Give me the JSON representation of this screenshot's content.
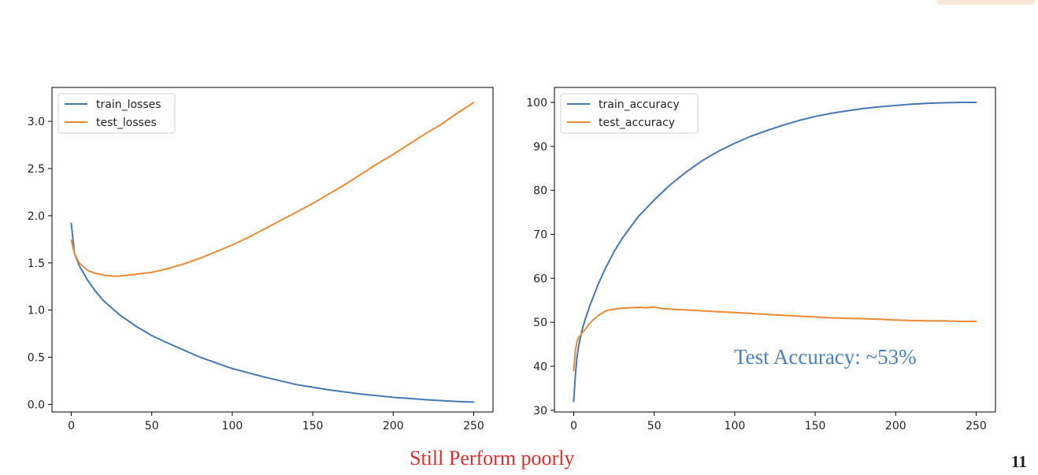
{
  "colors": {
    "train": "#4479b4",
    "test": "#ec8a33",
    "annotation": "#4a80bd",
    "caption": "#e32b2b",
    "corner_tab": "#fbe7d8"
  },
  "page_number": "11",
  "caption": "Still Perform poorly",
  "annotation": "Test Accuracy: ~53%",
  "chart_data": [
    {
      "type": "line",
      "xlim": [
        -12,
        262
      ],
      "ylim": [
        -0.08,
        3.36
      ],
      "xticks": [
        0,
        50,
        100,
        150,
        200,
        250
      ],
      "xtick_labels": [
        "0",
        "50",
        "100",
        "150",
        "200",
        "250"
      ],
      "yticks": [
        0.0,
        0.5,
        1.0,
        1.5,
        2.0,
        2.5,
        3.0
      ],
      "ytick_labels": [
        "0.0",
        "0.5",
        "1.0",
        "1.5",
        "2.0",
        "2.5",
        "3.0"
      ],
      "legend_position": "top-left",
      "grid": false,
      "series": [
        {
          "name": "train_losses",
          "x": [
            0,
            2,
            5,
            10,
            15,
            20,
            30,
            40,
            50,
            60,
            80,
            100,
            120,
            140,
            160,
            180,
            200,
            220,
            240,
            250
          ],
          "y": [
            1.92,
            1.6,
            1.47,
            1.32,
            1.2,
            1.1,
            0.95,
            0.83,
            0.73,
            0.65,
            0.5,
            0.38,
            0.29,
            0.21,
            0.155,
            0.11,
            0.075,
            0.05,
            0.03,
            0.025
          ]
        },
        {
          "name": "test_losses",
          "x": [
            0,
            2,
            5,
            10,
            15,
            20,
            25,
            30,
            40,
            50,
            60,
            70,
            80,
            90,
            100,
            110,
            120,
            130,
            140,
            150,
            160,
            170,
            180,
            190,
            200,
            210,
            220,
            230,
            240,
            250
          ],
          "y": [
            1.74,
            1.6,
            1.5,
            1.42,
            1.39,
            1.37,
            1.36,
            1.36,
            1.38,
            1.4,
            1.44,
            1.49,
            1.55,
            1.62,
            1.69,
            1.77,
            1.86,
            1.95,
            2.04,
            2.13,
            2.23,
            2.33,
            2.44,
            2.55,
            2.65,
            2.76,
            2.87,
            2.97,
            3.09,
            3.2
          ]
        }
      ]
    },
    {
      "type": "line",
      "xlim": [
        -12,
        262
      ],
      "ylim": [
        29.6,
        103.4
      ],
      "xticks": [
        0,
        50,
        100,
        150,
        200,
        250
      ],
      "xtick_labels": [
        "0",
        "50",
        "100",
        "150",
        "200",
        "250"
      ],
      "yticks": [
        30,
        40,
        50,
        60,
        70,
        80,
        90,
        100
      ],
      "ytick_labels": [
        "30",
        "40",
        "50",
        "60",
        "70",
        "80",
        "90",
        "100"
      ],
      "legend_position": "top-left",
      "grid": false,
      "series": [
        {
          "name": "train_accuracy",
          "x": [
            0,
            1,
            2,
            3,
            5,
            7,
            10,
            15,
            20,
            25,
            30,
            40,
            50,
            60,
            70,
            80,
            90,
            100,
            110,
            120,
            130,
            140,
            150,
            160,
            170,
            180,
            190,
            200,
            210,
            220,
            230,
            240,
            250
          ],
          "y": [
            32,
            38,
            42,
            44.5,
            48,
            50.5,
            53.8,
            58.5,
            62.5,
            66,
            69,
            74,
            77.8,
            81.3,
            84.2,
            86.8,
            88.9,
            90.7,
            92.3,
            93.6,
            94.8,
            95.9,
            96.8,
            97.5,
            98.1,
            98.6,
            99.0,
            99.3,
            99.6,
            99.8,
            99.9,
            100,
            100
          ]
        },
        {
          "name": "test_accuracy",
          "x": [
            0,
            1,
            2,
            3,
            5,
            8,
            10,
            15,
            20,
            25,
            30,
            35,
            40,
            45,
            50,
            55,
            60,
            70,
            80,
            90,
            100,
            110,
            120,
            130,
            140,
            150,
            160,
            170,
            180,
            190,
            200,
            210,
            220,
            230,
            240,
            250
          ],
          "y": [
            39,
            43.5,
            45.5,
            46.5,
            47.5,
            48.8,
            49.8,
            51.5,
            52.6,
            53.0,
            53.2,
            53.3,
            53.4,
            53.3,
            53.5,
            53.1,
            53.0,
            52.8,
            52.6,
            52.4,
            52.2,
            52.0,
            51.8,
            51.6,
            51.4,
            51.2,
            51.0,
            50.9,
            50.8,
            50.7,
            50.5,
            50.4,
            50.3,
            50.3,
            50.2,
            50.2
          ]
        }
      ]
    }
  ]
}
